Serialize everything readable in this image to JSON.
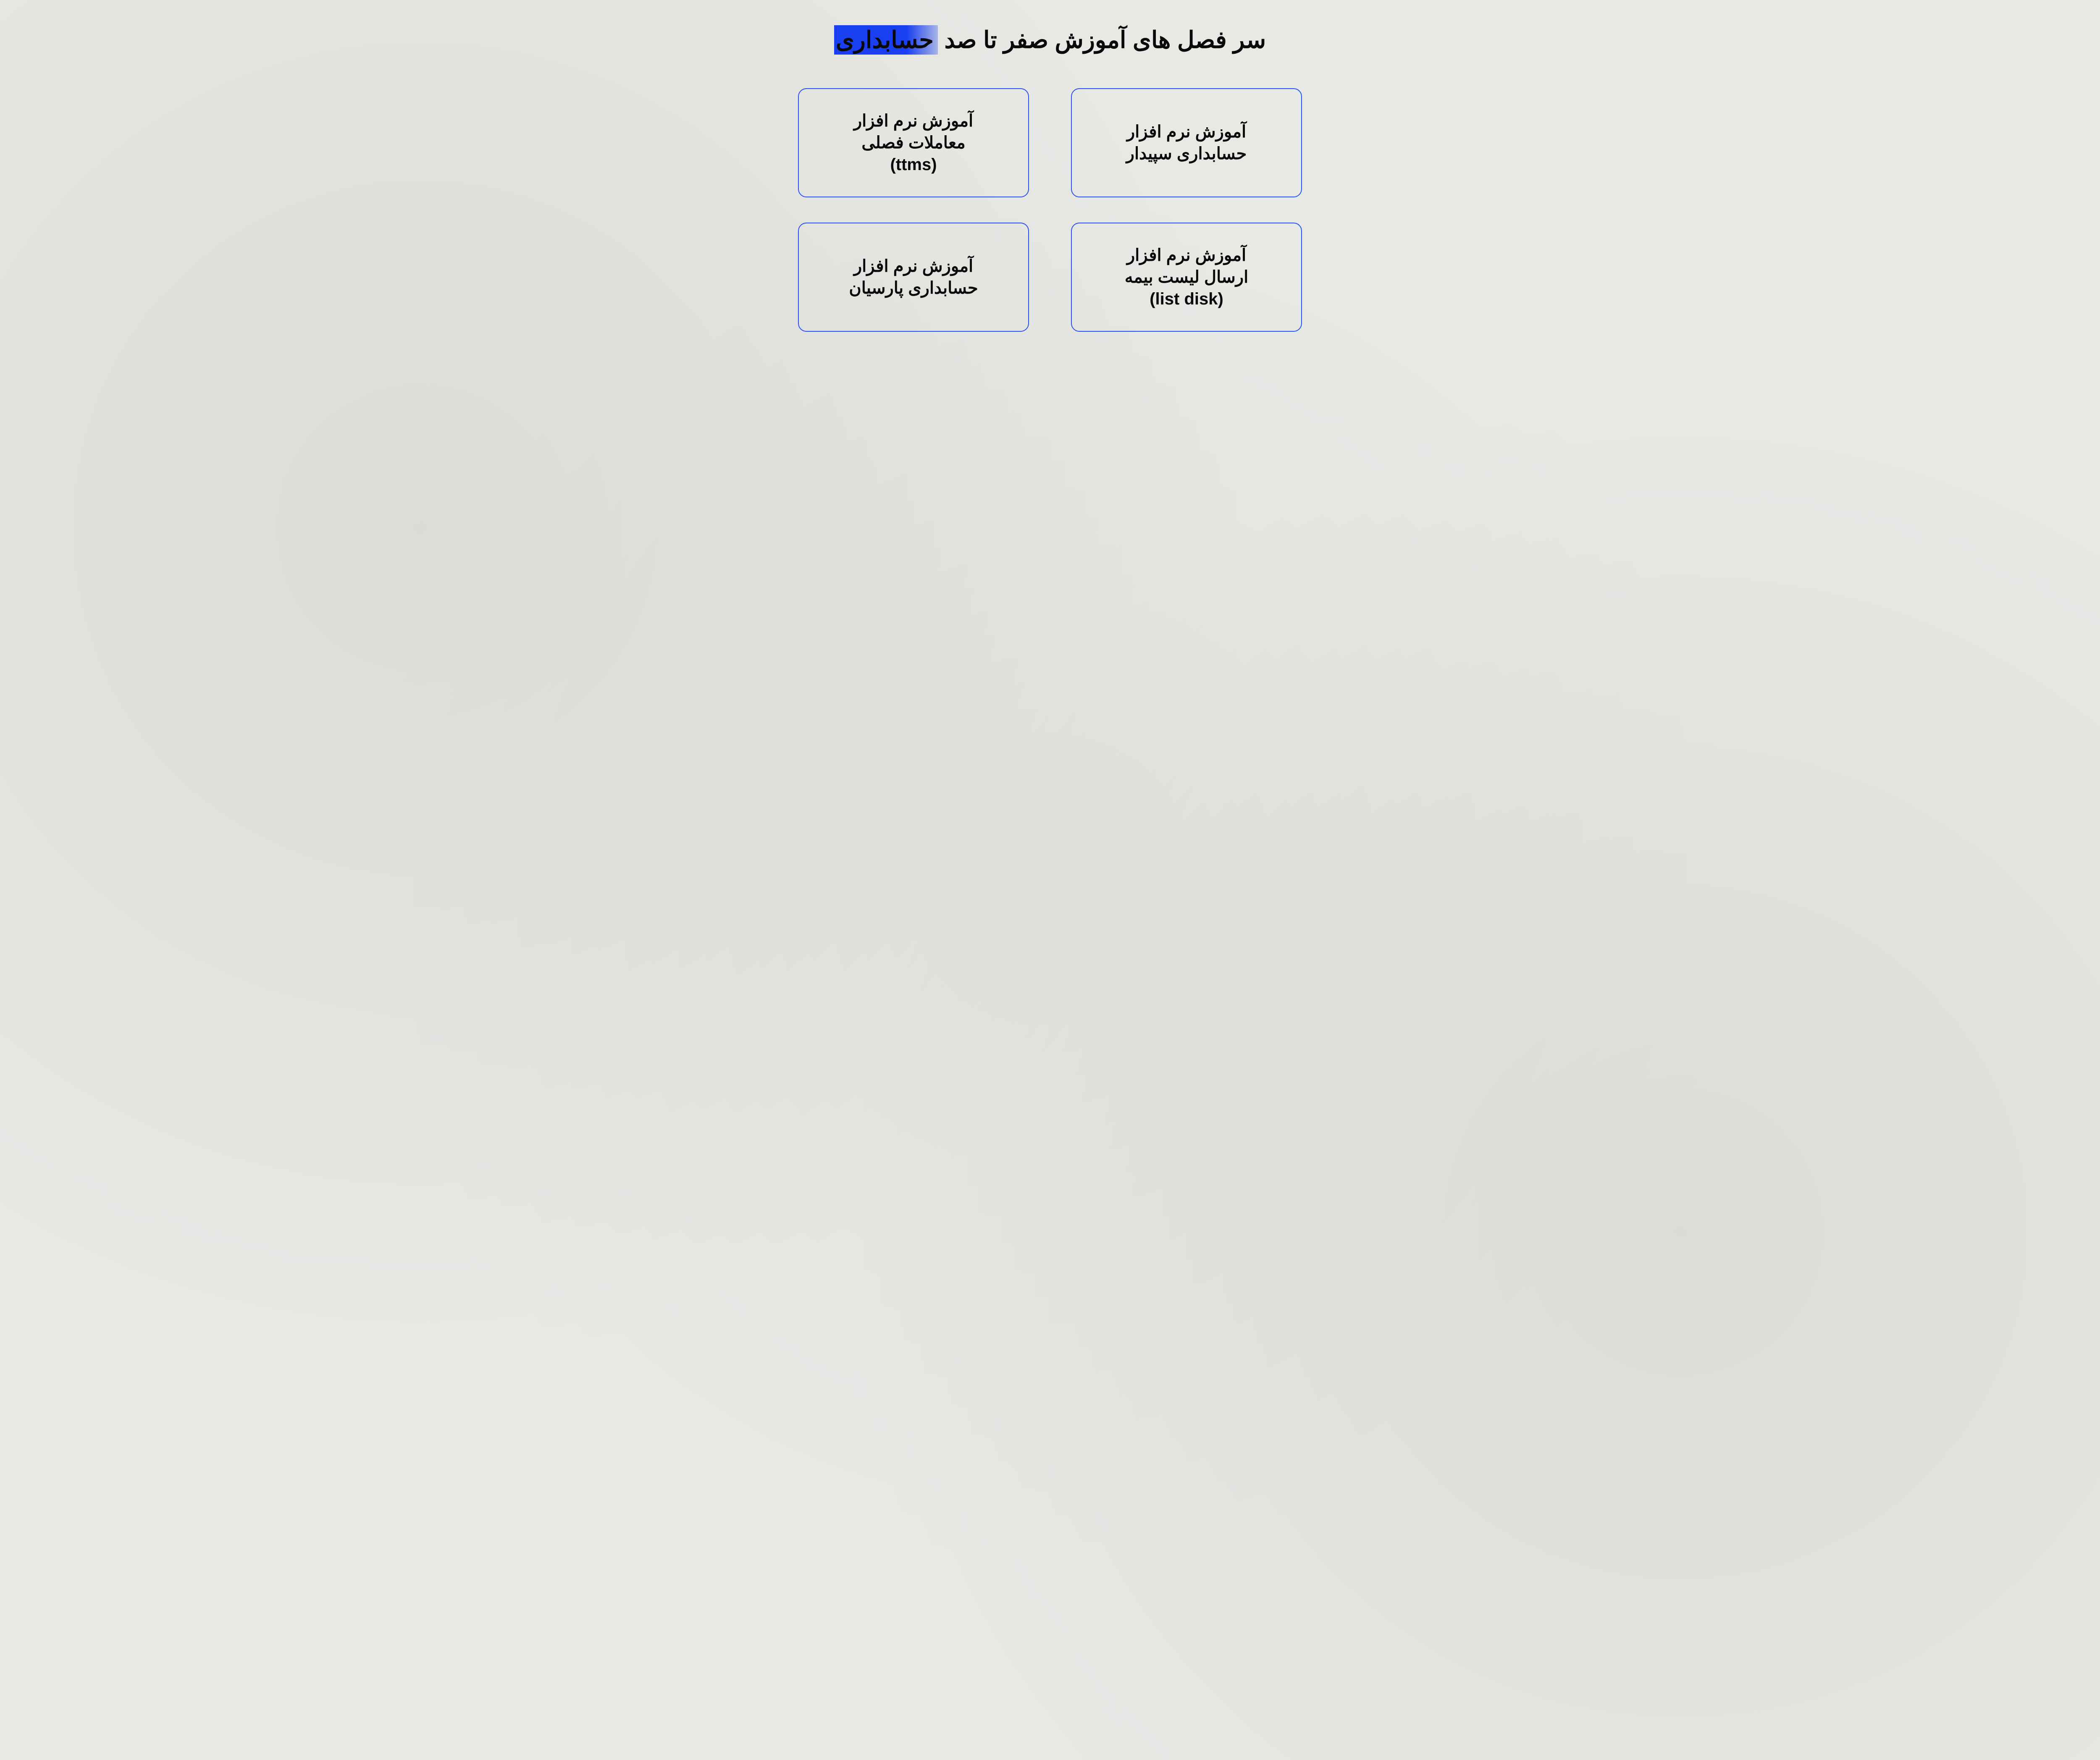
{
  "title": {
    "prefix": "سر فصل های آموزش صفر تا صد ",
    "highlighted": "حسابداری"
  },
  "cards": [
    {
      "id": "sepidar",
      "text": "آموزش نرم افزار\nحسابداری سپیدار"
    },
    {
      "id": "ttms",
      "text": "آموزش نرم افزار\nمعاملات فصلی\n(ttms)"
    },
    {
      "id": "listdisk",
      "text": "آموزش نرم افزار\nارسال لیست بیمه\n(list disk)"
    },
    {
      "id": "parsian",
      "text": "آموزش نرم افزار\nحسابداری پارسیان"
    }
  ],
  "style": {
    "background_color": "#e8e8e5",
    "text_color": "#0a0a0a",
    "border_color": "#2952f5",
    "highlight_color": "#1a3ff0",
    "title_fontsize": 56,
    "card_fontsize": 40,
    "border_radius": 20,
    "border_width": 2
  }
}
